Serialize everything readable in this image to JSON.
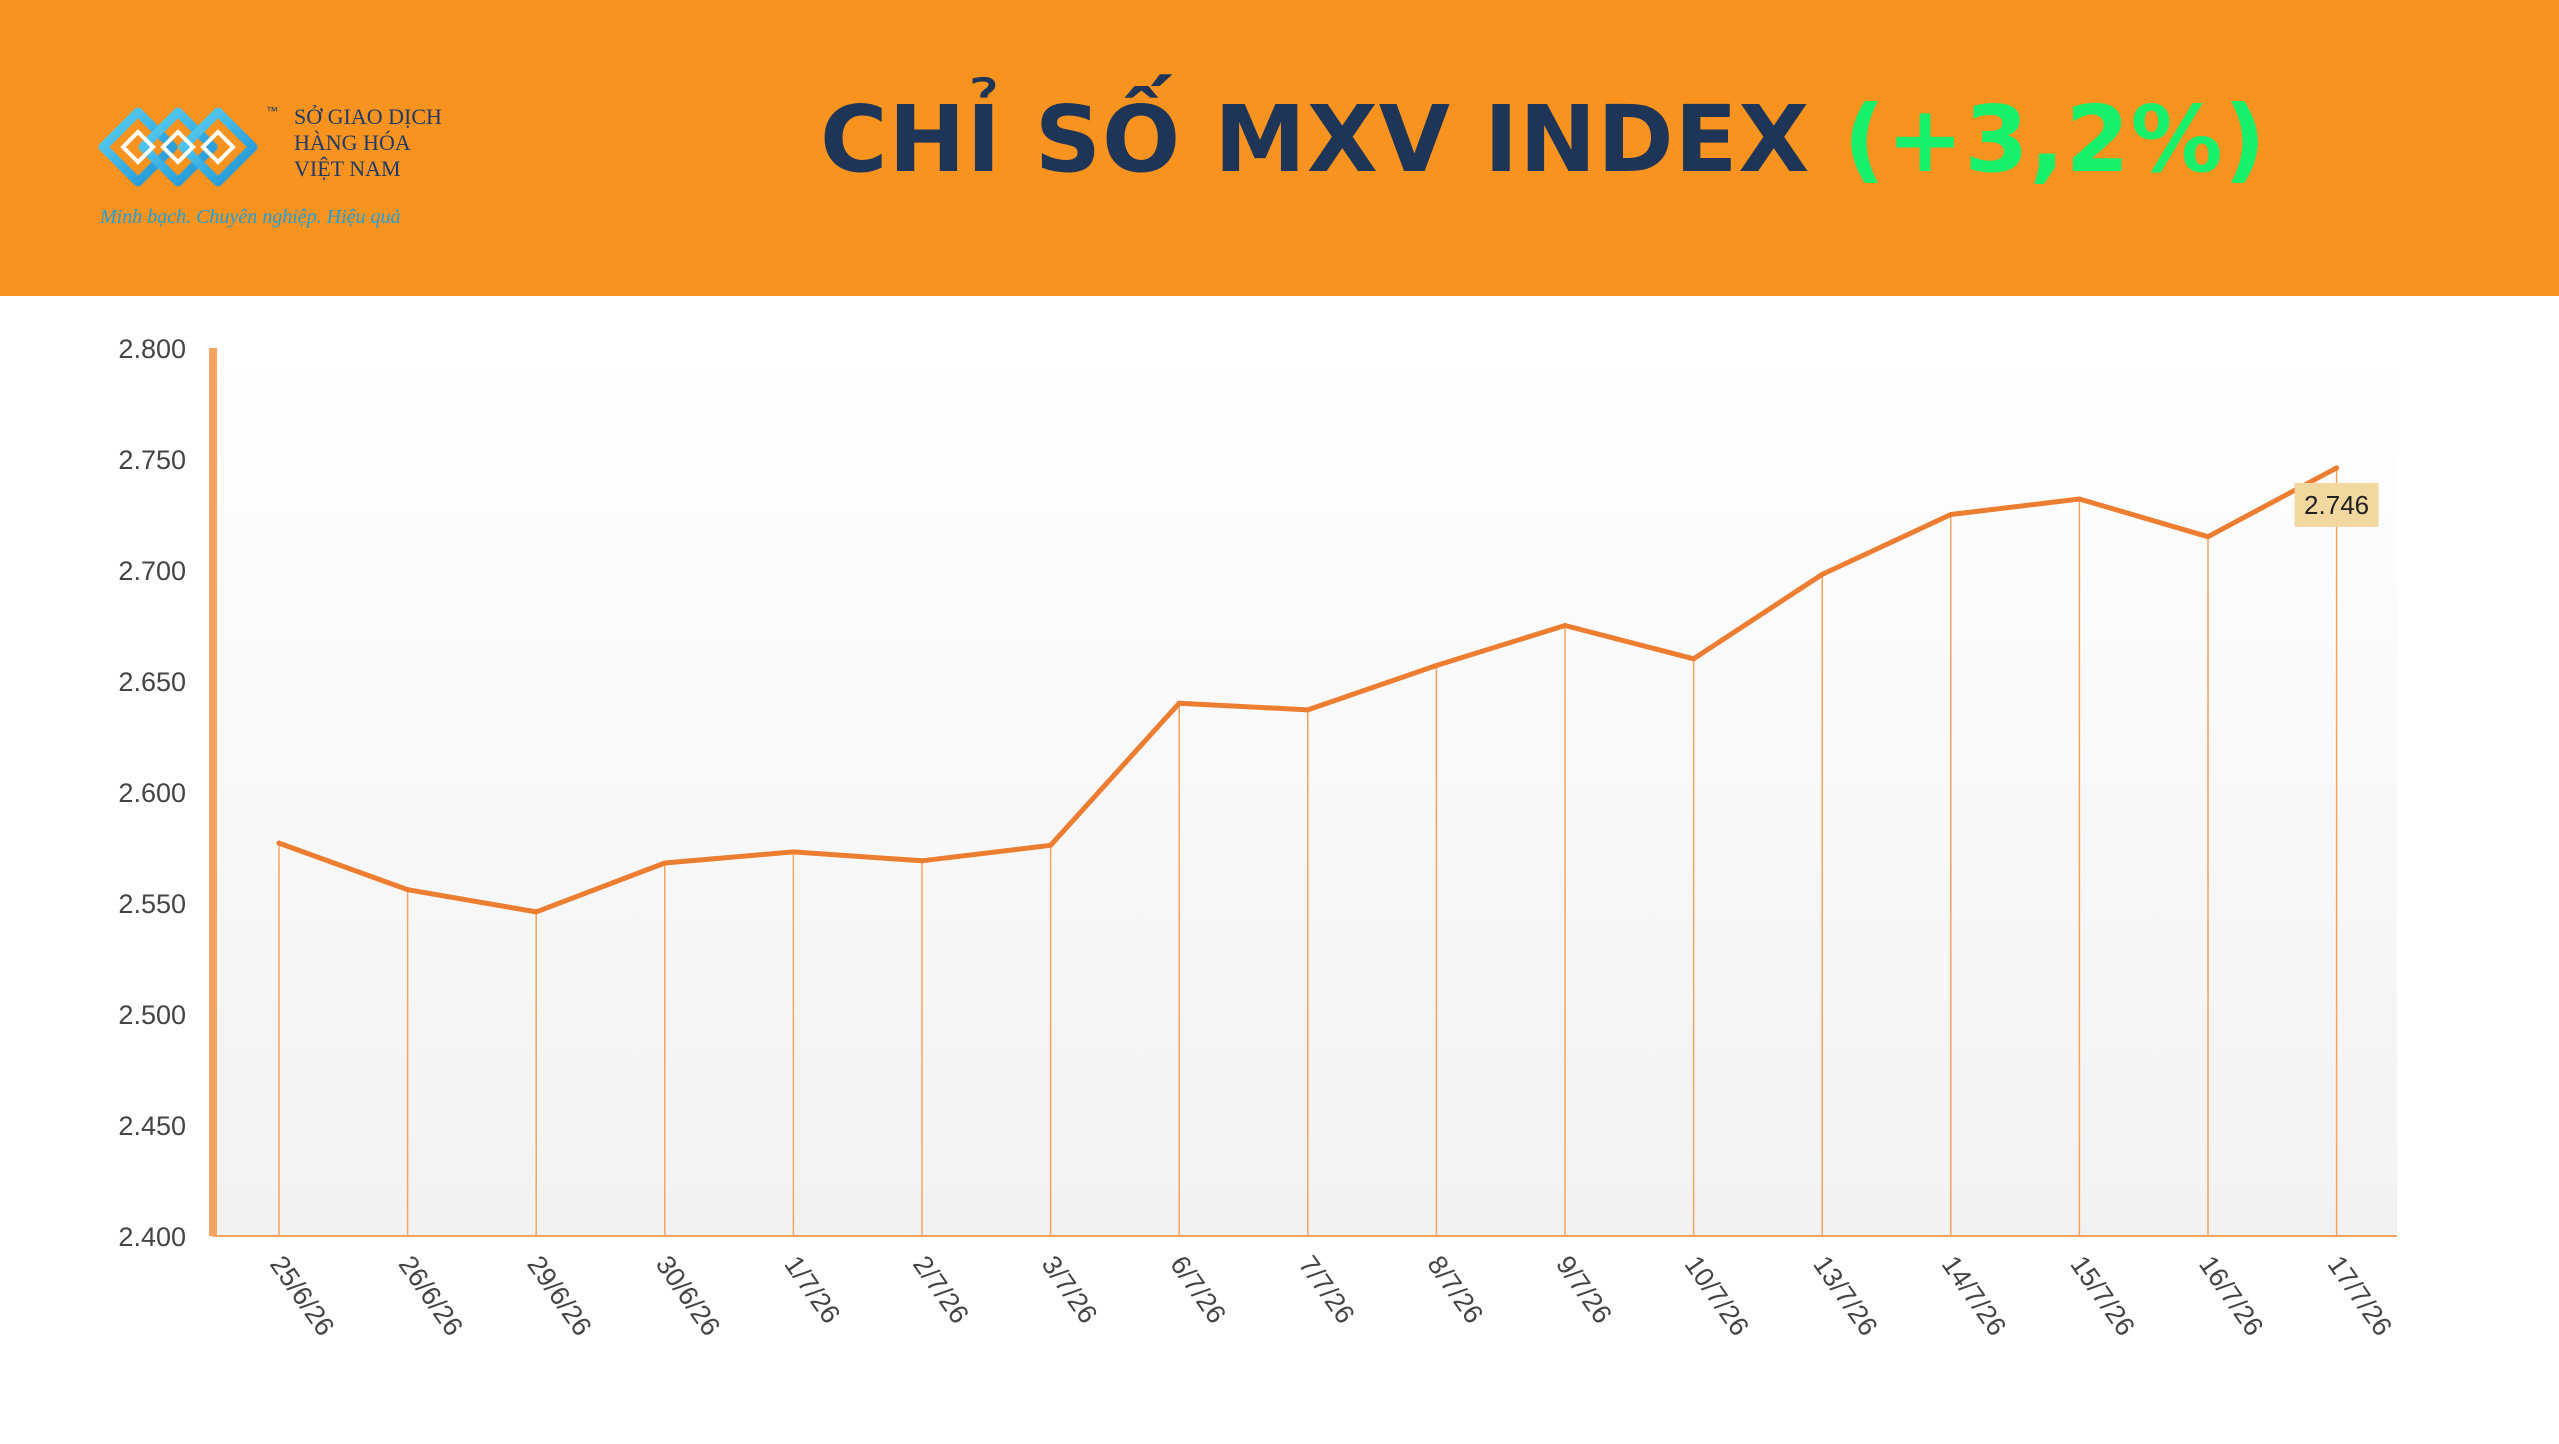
{
  "header": {
    "title": "CHỈ SỐ MXV INDEX",
    "change": "(+3,2%)",
    "logo": {
      "tm": "™",
      "line1": "SỞ GIAO DỊCH",
      "line2": "HÀNG HÓA",
      "line3": "VIỆT NAM",
      "slogan": "Minh bạch. Chuyên nghiệp. Hiệu quả"
    }
  },
  "colors": {
    "header_bg": "#f7931e",
    "title": "#1f3558",
    "change": "#17f06b",
    "line": "#ed7d31",
    "axis": "#f4a460",
    "label_bg": "#f2d79e"
  },
  "chart_data": {
    "type": "line",
    "categories": [
      "25/6/26",
      "26/6/26",
      "29/6/26",
      "30/6/26",
      "1/7/26",
      "2/7/26",
      "3/7/26",
      "6/7/26",
      "7/7/26",
      "8/7/26",
      "9/7/26",
      "10/7/26",
      "13/7/26",
      "14/7/26",
      "15/7/26",
      "16/7/26",
      "17/7/26"
    ],
    "series": [
      {
        "values": [
          2577,
          2556,
          2546,
          2568,
          2573,
          2569,
          2576,
          2640,
          2637,
          2657,
          2675,
          2660,
          2698,
          2725,
          2732,
          2715,
          2746
        ]
      }
    ],
    "yticks": [
      "2.800",
      "2.750",
      "2.700",
      "2.650",
      "2.600",
      "2.550",
      "2.500",
      "2.450",
      "2.400"
    ],
    "ylim": [
      2400,
      2800
    ],
    "last_label": "2.746",
    "drop_lines": true,
    "grid": false
  }
}
